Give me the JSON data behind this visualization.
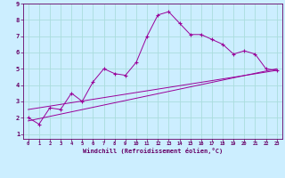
{
  "xlabel": "Windchill (Refroidissement éolien,°C)",
  "bg_color": "#cceeff",
  "grid_color": "#aadddd",
  "line_color": "#990099",
  "axis_color": "#660066",
  "xlim": [
    -0.5,
    23.5
  ],
  "ylim": [
    0.7,
    9.0
  ],
  "xticks": [
    0,
    1,
    2,
    3,
    4,
    5,
    6,
    7,
    8,
    9,
    10,
    11,
    12,
    13,
    14,
    15,
    16,
    17,
    18,
    19,
    20,
    21,
    22,
    23
  ],
  "yticks": [
    1,
    2,
    3,
    4,
    5,
    6,
    7,
    8,
    9
  ],
  "series1_x": [
    0,
    1,
    2,
    3,
    4,
    5,
    6,
    7,
    8,
    9,
    10,
    11,
    12,
    13,
    14,
    15,
    16,
    17,
    18,
    19,
    20,
    21,
    22,
    23
  ],
  "series1_y": [
    2.0,
    1.6,
    2.6,
    2.5,
    3.5,
    3.0,
    4.2,
    5.0,
    4.7,
    4.6,
    5.4,
    7.0,
    8.3,
    8.5,
    7.8,
    7.1,
    7.1,
    6.8,
    6.5,
    5.9,
    6.1,
    5.9,
    5.0,
    4.9
  ],
  "series2_x": [
    0,
    23
  ],
  "series2_y": [
    1.8,
    5.0
  ],
  "series3_x": [
    0,
    23
  ],
  "series3_y": [
    2.5,
    4.9
  ]
}
